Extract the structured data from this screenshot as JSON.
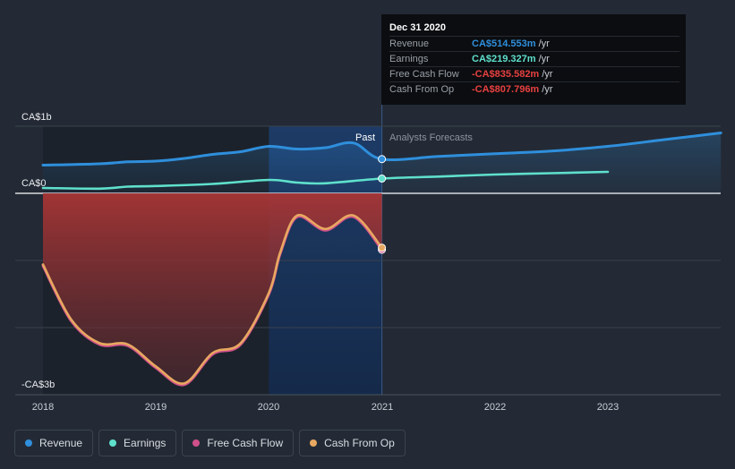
{
  "chart_data": {
    "type": "line",
    "x_ticks": [
      "2018",
      "2019",
      "2020",
      "2021",
      "2022",
      "2023"
    ],
    "y_ticks": [
      "CA$1b",
      "CA$0",
      "-CA$3b"
    ],
    "region_labels": {
      "past": "Past",
      "forecast": "Analysts Forecasts"
    },
    "series": [
      {
        "name": "Revenue",
        "color": "#2f8fdc",
        "x": [
          2018.0,
          2018.5,
          2018.75,
          2019.0,
          2019.25,
          2019.5,
          2019.75,
          2020.0,
          2020.25,
          2020.5,
          2020.75,
          2021.0,
          2021.5,
          2022.0,
          2022.5,
          2023.0,
          2023.5,
          2024.0
        ],
        "y": [
          0.42,
          0.44,
          0.47,
          0.48,
          0.52,
          0.58,
          0.62,
          0.7,
          0.66,
          0.68,
          0.75,
          0.51,
          0.55,
          0.59,
          0.63,
          0.7,
          0.8,
          0.9
        ]
      },
      {
        "name": "Earnings",
        "color": "#5fe0cc",
        "x": [
          2018.0,
          2018.5,
          2018.75,
          2019.0,
          2019.5,
          2020.0,
          2020.25,
          2020.5,
          2021.0,
          2021.5,
          2022.0,
          2022.5,
          2023.0
        ],
        "y": [
          0.08,
          0.07,
          0.1,
          0.11,
          0.14,
          0.2,
          0.16,
          0.15,
          0.22,
          0.25,
          0.28,
          0.3,
          0.32
        ]
      },
      {
        "name": "Free Cash Flow",
        "color": "#d0508c",
        "x": [
          2018.0,
          2018.25,
          2018.5,
          2018.75,
          2019.0,
          2019.25,
          2019.5,
          2019.75,
          2020.0,
          2020.1,
          2020.25,
          2020.5,
          2020.75,
          2021.0
        ],
        "y": [
          -1.08,
          -1.9,
          -2.25,
          -2.27,
          -2.6,
          -2.85,
          -2.4,
          -2.25,
          -1.5,
          -0.9,
          -0.35,
          -0.55,
          -0.35,
          -0.84
        ]
      },
      {
        "name": "Cash From Op",
        "color": "#e8a860",
        "x": [
          2018.0,
          2018.25,
          2018.5,
          2018.75,
          2019.0,
          2019.25,
          2019.5,
          2019.75,
          2020.0,
          2020.1,
          2020.25,
          2020.5,
          2020.75,
          2021.0
        ],
        "y": [
          -1.06,
          -1.88,
          -2.23,
          -2.25,
          -2.58,
          -2.83,
          -2.38,
          -2.23,
          -1.48,
          -0.88,
          -0.33,
          -0.53,
          -0.33,
          -0.81
        ]
      }
    ]
  },
  "tooltip": {
    "date": "Dec 31 2020",
    "rows": [
      {
        "label": "Revenue",
        "value": "CA$514.553m",
        "unit": "/yr",
        "color": "#2f8fdc"
      },
      {
        "label": "Earnings",
        "value": "CA$219.327m",
        "unit": "/yr",
        "color": "#5fe0cc"
      },
      {
        "label": "Free Cash Flow",
        "value": "-CA$835.582m",
        "unit": "/yr",
        "color": "#e84040"
      },
      {
        "label": "Cash From Op",
        "value": "-CA$807.796m",
        "unit": "/yr",
        "color": "#e84040"
      }
    ]
  },
  "legend": [
    {
      "label": "Revenue",
      "color": "#2f8fdc",
      "icon": "dot"
    },
    {
      "label": "Earnings",
      "color": "#5fe0cc",
      "icon": "dot"
    },
    {
      "label": "Free Cash Flow",
      "color": "#d0508c",
      "icon": "dot"
    },
    {
      "label": "Cash From Op",
      "color": "#e8a860",
      "icon": "dot"
    }
  ]
}
